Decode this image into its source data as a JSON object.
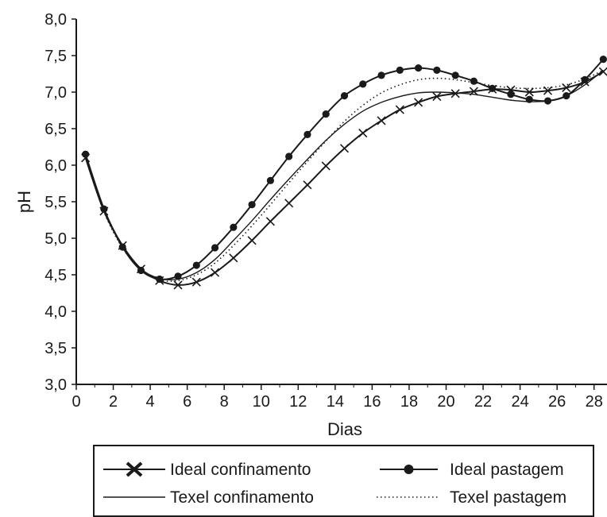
{
  "chart_data": {
    "type": "line",
    "xlabel": "Dias",
    "ylabel": "pH",
    "xlim": [
      0,
      28.7
    ],
    "ylim": [
      3.0,
      8.0
    ],
    "x_ticks": [
      "0",
      "2",
      "4",
      "6",
      "8",
      "10",
      "12",
      "14",
      "16",
      "18",
      "20",
      "22",
      "24",
      "26",
      "28"
    ],
    "y_ticks": [
      "3,0",
      "3,5",
      "4,0",
      "4,5",
      "5,0",
      "5,5",
      "6,0",
      "6,5",
      "7,0",
      "7,5",
      "8,0"
    ],
    "grid": false,
    "legend_position": "bottom",
    "series": [
      {
        "name": "Ideal confinamento",
        "marker": "x",
        "line": "solid",
        "x": [
          0.5,
          1.5,
          2.5,
          3.5,
          4.5,
          5.5,
          6.5,
          7.5,
          8.5,
          9.5,
          10.5,
          11.5,
          12.5,
          13.5,
          14.5,
          15.5,
          16.5,
          17.5,
          18.5,
          19.5,
          20.5,
          21.5,
          22.5,
          23.5,
          24.5,
          25.5,
          26.5,
          27.5,
          28.5
        ],
        "y": [
          6.1,
          5.37,
          4.9,
          4.58,
          4.42,
          4.36,
          4.4,
          4.53,
          4.73,
          4.97,
          5.23,
          5.48,
          5.73,
          5.99,
          6.23,
          6.44,
          6.61,
          6.76,
          6.86,
          6.94,
          6.98,
          7.01,
          7.04,
          7.03,
          7.0,
          7.02,
          7.06,
          7.14,
          7.28
        ]
      },
      {
        "name": "Ideal pastagem",
        "marker": "o",
        "line": "solid",
        "x": [
          0.5,
          1.5,
          2.5,
          3.5,
          4.5,
          5.5,
          6.5,
          7.5,
          8.5,
          9.5,
          10.5,
          11.5,
          12.5,
          13.5,
          14.5,
          15.5,
          16.5,
          17.5,
          18.5,
          19.5,
          20.5,
          21.5,
          22.5,
          23.5,
          24.5,
          25.5,
          26.5,
          27.5,
          28.5
        ],
        "y": [
          6.15,
          5.4,
          4.88,
          4.56,
          4.44,
          4.48,
          4.63,
          4.87,
          5.15,
          5.46,
          5.79,
          6.12,
          6.42,
          6.7,
          6.95,
          7.11,
          7.23,
          7.3,
          7.33,
          7.3,
          7.23,
          7.15,
          7.05,
          6.97,
          6.9,
          6.88,
          6.95,
          7.17,
          7.45
        ]
      },
      {
        "name": "Texel confinamento",
        "marker": "none",
        "line": "solid",
        "x": [
          0.5,
          1.5,
          2.5,
          3.5,
          4.5,
          5.5,
          6.5,
          7.5,
          8.5,
          9.5,
          10.5,
          11.5,
          12.5,
          13.5,
          14.5,
          15.5,
          16.5,
          17.5,
          18.5,
          19.5,
          20.5,
          21.5,
          22.5,
          23.5,
          24.5,
          25.5,
          26.5,
          27.5,
          28.5
        ],
        "y": [
          6.12,
          5.4,
          4.9,
          4.58,
          4.45,
          4.44,
          4.53,
          4.71,
          4.97,
          5.24,
          5.53,
          5.81,
          6.08,
          6.34,
          6.56,
          6.74,
          6.86,
          6.94,
          6.99,
          7.0,
          6.99,
          6.97,
          6.93,
          6.89,
          6.87,
          6.88,
          6.95,
          7.1,
          7.3
        ]
      },
      {
        "name": "Texel pastagem",
        "marker": "none",
        "line": "dotted",
        "x": [
          0.5,
          1.5,
          2.5,
          3.5,
          4.5,
          5.5,
          6.5,
          7.5,
          8.5,
          9.5,
          10.5,
          11.5,
          12.5,
          13.5,
          14.5,
          15.5,
          16.5,
          17.5,
          18.5,
          19.5,
          20.5,
          21.5,
          22.5,
          23.5,
          24.5,
          25.5,
          26.5,
          27.5,
          28.5
        ],
        "y": [
          6.1,
          5.36,
          4.87,
          4.57,
          4.43,
          4.42,
          4.5,
          4.66,
          4.9,
          5.17,
          5.46,
          5.76,
          6.05,
          6.33,
          6.6,
          6.82,
          6.99,
          7.1,
          7.17,
          7.19,
          7.17,
          7.13,
          7.09,
          7.06,
          7.05,
          7.06,
          7.1,
          7.18,
          7.3
        ]
      }
    ]
  },
  "colors": {
    "line": "#1a1a1a",
    "background": "#ffffff"
  }
}
